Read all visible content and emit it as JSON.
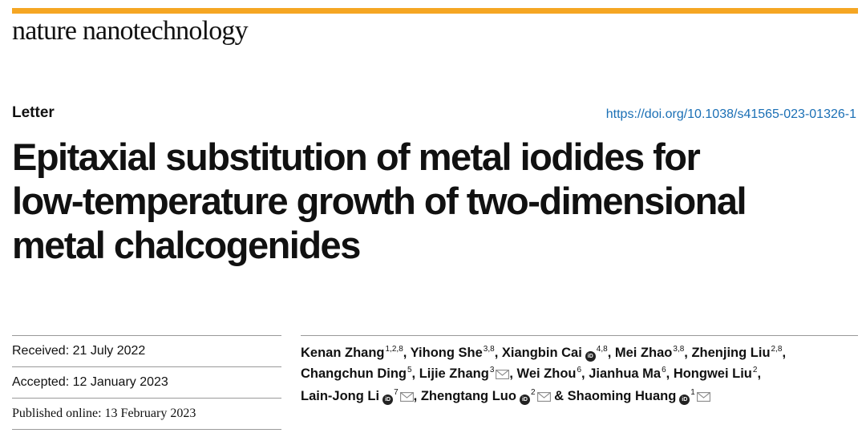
{
  "header": {
    "journal": "nature nanotechnology",
    "accent_color": "#f5a623"
  },
  "article": {
    "type": "Letter",
    "doi": "https://doi.org/10.1038/s41565-023-01326-1",
    "title_lines": [
      "Epitaxial substitution of metal iodides for",
      "low-temperature growth of two-dimensional",
      "metal chalcogenides"
    ]
  },
  "dates": {
    "received": "Received: 21 July 2022",
    "accepted": "Accepted: 12 January 2023",
    "published": "Published online: 13 February 2023"
  },
  "authors": [
    {
      "name": "Kenan Zhang",
      "aff": "1,2,8",
      "orcid": false,
      "email": false
    },
    {
      "name": "Yihong She",
      "aff": "3,8",
      "orcid": false,
      "email": false
    },
    {
      "name": "Xiangbin Cai",
      "aff": "4,8",
      "orcid": true,
      "email": false
    },
    {
      "name": "Mei Zhao",
      "aff": "3,8",
      "orcid": false,
      "email": false
    },
    {
      "name": "Zhenjing Liu",
      "aff": "2,8",
      "orcid": false,
      "email": false
    },
    {
      "name": "Changchun Ding",
      "aff": "5",
      "orcid": false,
      "email": false
    },
    {
      "name": "Lijie Zhang",
      "aff": "3",
      "orcid": false,
      "email": true
    },
    {
      "name": "Wei Zhou",
      "aff": "6",
      "orcid": false,
      "email": false
    },
    {
      "name": "Jianhua Ma",
      "aff": "6",
      "orcid": false,
      "email": false
    },
    {
      "name": "Hongwei Liu",
      "aff": "2",
      "orcid": false,
      "email": false
    },
    {
      "name": "Lain-Jong Li",
      "aff": "7",
      "orcid": true,
      "email": true
    },
    {
      "name": "Zhengtang Luo",
      "aff": "2",
      "orcid": true,
      "email": true
    },
    {
      "name": "Shaoming Huang",
      "aff": "1",
      "orcid": true,
      "email": true
    }
  ],
  "icons": {
    "orcid": "orcid-icon",
    "email": "envelope-icon"
  },
  "orcid_glyph": "iD",
  "separators": {
    "comma": ", ",
    "last": " & "
  }
}
